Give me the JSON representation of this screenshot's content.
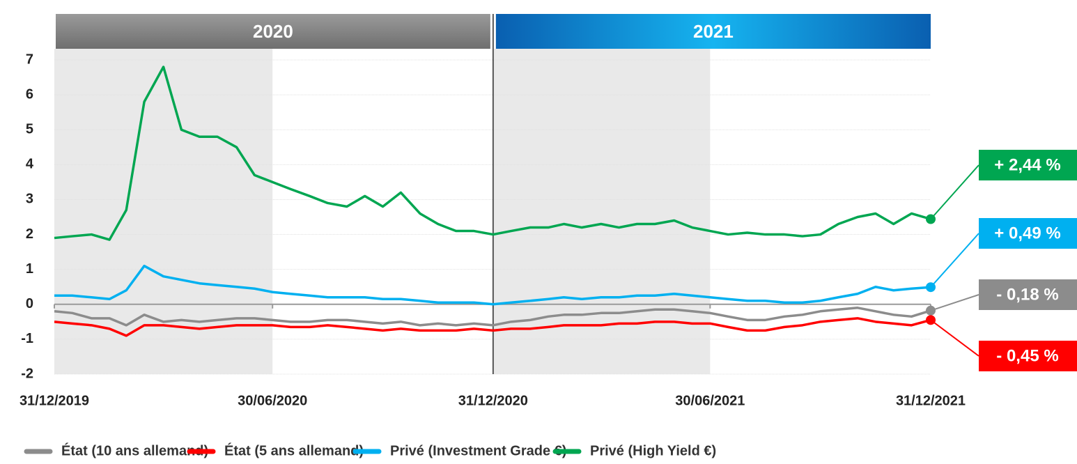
{
  "chart_data": {
    "type": "line",
    "periods": [
      {
        "label": "2020",
        "start": "31/12/2019",
        "end": "31/12/2020",
        "color": "#808080"
      },
      {
        "label": "2021",
        "start": "31/12/2020",
        "end": "31/12/2021",
        "color": "#0a8fd8"
      }
    ],
    "shaded": [
      [
        "31/12/2019",
        "30/06/2020"
      ],
      [
        "31/12/2020",
        "30/06/2021"
      ]
    ],
    "x": [
      "31/12/2019",
      "15/01/2020",
      "31/01/2020",
      "15/02/2020",
      "29/02/2020",
      "15/03/2020",
      "31/03/2020",
      "15/04/2020",
      "30/04/2020",
      "15/05/2020",
      "31/05/2020",
      "15/06/2020",
      "30/06/2020",
      "15/07/2020",
      "31/07/2020",
      "15/08/2020",
      "31/08/2020",
      "15/09/2020",
      "30/09/2020",
      "15/10/2020",
      "31/10/2020",
      "15/11/2020",
      "30/11/2020",
      "15/12/2020",
      "31/12/2020",
      "15/01/2021",
      "31/01/2021",
      "15/02/2021",
      "28/02/2021",
      "15/03/2021",
      "31/03/2021",
      "15/04/2021",
      "30/04/2021",
      "15/05/2021",
      "31/05/2021",
      "15/06/2021",
      "30/06/2021",
      "15/07/2021",
      "31/07/2021",
      "15/08/2021",
      "31/08/2021",
      "15/09/2021",
      "30/09/2021",
      "15/10/2021",
      "31/10/2021",
      "15/11/2021",
      "30/11/2021",
      "15/12/2021",
      "31/12/2021"
    ],
    "series": [
      {
        "name": "État (10 ans allemand)",
        "color": "#8c8c8c",
        "values": [
          -0.2,
          -0.25,
          -0.4,
          -0.4,
          -0.6,
          -0.3,
          -0.5,
          -0.45,
          -0.5,
          -0.45,
          -0.4,
          -0.4,
          -0.45,
          -0.5,
          -0.5,
          -0.45,
          -0.45,
          -0.5,
          -0.55,
          -0.5,
          -0.6,
          -0.55,
          -0.6,
          -0.55,
          -0.6,
          -0.5,
          -0.45,
          -0.35,
          -0.3,
          -0.3,
          -0.25,
          -0.25,
          -0.2,
          -0.15,
          -0.15,
          -0.2,
          -0.25,
          -0.35,
          -0.45,
          -0.45,
          -0.35,
          -0.3,
          -0.2,
          -0.15,
          -0.1,
          -0.2,
          -0.3,
          -0.35,
          -0.18
        ],
        "value_labels": [
          null,
          null,
          null,
          null,
          null,
          null,
          null,
          null,
          null,
          null,
          null,
          null,
          null,
          null,
          null,
          null,
          null,
          null,
          null,
          null,
          null,
          null,
          null,
          null,
          null,
          null,
          null,
          null,
          null,
          null,
          null,
          null,
          null,
          null,
          null,
          null,
          null,
          null,
          null,
          null,
          null,
          null,
          null,
          null,
          null,
          null,
          null,
          null,
          "- 0,18 %"
        ]
      },
      {
        "name": "État (5 ans allemand)",
        "color": "#ff0000",
        "values": [
          -0.5,
          -0.55,
          -0.6,
          -0.7,
          -0.9,
          -0.6,
          -0.6,
          -0.65,
          -0.7,
          -0.65,
          -0.6,
          -0.6,
          -0.6,
          -0.65,
          -0.65,
          -0.6,
          -0.65,
          -0.7,
          -0.75,
          -0.7,
          -0.75,
          -0.75,
          -0.75,
          -0.7,
          -0.75,
          -0.7,
          -0.7,
          -0.65,
          -0.6,
          -0.6,
          -0.6,
          -0.55,
          -0.55,
          -0.5,
          -0.5,
          -0.55,
          -0.55,
          -0.65,
          -0.75,
          -0.75,
          -0.65,
          -0.6,
          -0.5,
          -0.45,
          -0.4,
          -0.5,
          -0.55,
          -0.6,
          -0.45
        ],
        "value_labels": [
          null,
          null,
          null,
          null,
          null,
          null,
          null,
          null,
          null,
          null,
          null,
          null,
          null,
          null,
          null,
          null,
          null,
          null,
          null,
          null,
          null,
          null,
          null,
          null,
          null,
          null,
          null,
          null,
          null,
          null,
          null,
          null,
          null,
          null,
          null,
          null,
          null,
          null,
          null,
          null,
          null,
          null,
          null,
          null,
          null,
          null,
          null,
          null,
          "- 0,45 %"
        ]
      },
      {
        "name": "Privé (Investment Grade €)",
        "color": "#00b0f0",
        "values": [
          0.25,
          0.25,
          0.2,
          0.15,
          0.4,
          1.1,
          0.8,
          0.7,
          0.6,
          0.55,
          0.5,
          0.45,
          0.35,
          0.3,
          0.25,
          0.2,
          0.2,
          0.2,
          0.15,
          0.15,
          0.1,
          0.05,
          0.05,
          0.05,
          0.0,
          0.05,
          0.1,
          0.15,
          0.2,
          0.15,
          0.2,
          0.2,
          0.25,
          0.25,
          0.3,
          0.25,
          0.2,
          0.15,
          0.1,
          0.1,
          0.05,
          0.05,
          0.1,
          0.2,
          0.3,
          0.5,
          0.4,
          0.45,
          0.49
        ],
        "value_labels": [
          null,
          null,
          null,
          null,
          null,
          null,
          null,
          null,
          null,
          null,
          null,
          null,
          null,
          null,
          null,
          null,
          null,
          null,
          null,
          null,
          null,
          null,
          null,
          null,
          null,
          null,
          null,
          null,
          null,
          null,
          null,
          null,
          null,
          null,
          null,
          null,
          null,
          null,
          null,
          null,
          null,
          null,
          null,
          null,
          null,
          null,
          null,
          null,
          "+ 0,49 %"
        ]
      },
      {
        "name": "Privé (High Yield €)",
        "color": "#00a651",
        "values": [
          1.9,
          1.95,
          2.0,
          1.85,
          2.7,
          5.8,
          6.8,
          5.0,
          4.8,
          4.8,
          4.5,
          3.7,
          3.5,
          3.3,
          3.1,
          2.9,
          2.8,
          3.1,
          2.8,
          3.2,
          2.6,
          2.3,
          2.1,
          2.1,
          2.0,
          2.1,
          2.2,
          2.2,
          2.3,
          2.2,
          2.3,
          2.2,
          2.3,
          2.3,
          2.4,
          2.2,
          2.1,
          2.0,
          2.05,
          2.0,
          2.0,
          1.95,
          2.0,
          2.3,
          2.5,
          2.6,
          2.3,
          2.6,
          2.44
        ],
        "value_labels": [
          null,
          null,
          null,
          null,
          null,
          null,
          null,
          null,
          null,
          null,
          null,
          null,
          null,
          null,
          null,
          null,
          null,
          null,
          null,
          null,
          null,
          null,
          null,
          null,
          null,
          null,
          null,
          null,
          null,
          null,
          null,
          null,
          null,
          null,
          null,
          null,
          null,
          null,
          null,
          null,
          null,
          null,
          null,
          null,
          null,
          null,
          null,
          null,
          "+ 2,44 %"
        ]
      }
    ],
    "xlim": [
      "31/12/2019",
      "31/12/2021"
    ],
    "xticks": [
      "31/12/2019",
      "30/06/2020",
      "31/12/2020",
      "30/06/2021",
      "31/12/2021"
    ],
    "ylim": [
      -2,
      7
    ],
    "yticks": [
      -2,
      -1,
      0,
      1,
      2,
      3,
      4,
      5,
      6,
      7
    ],
    "grid": true
  }
}
